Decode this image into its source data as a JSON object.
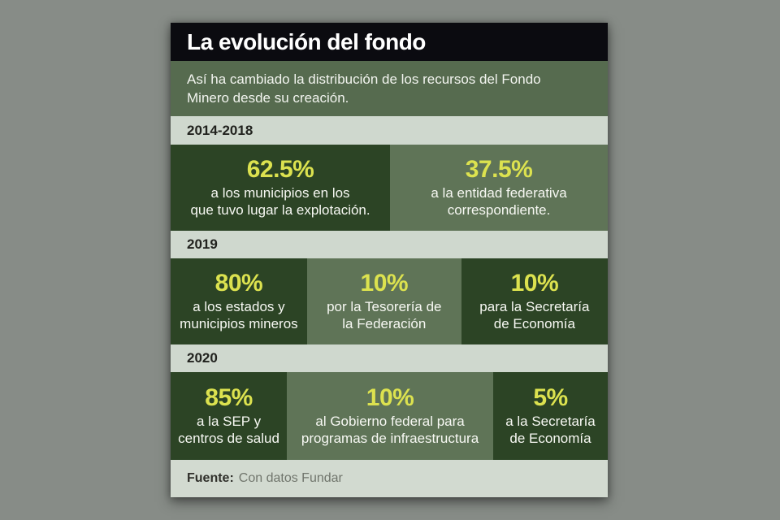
{
  "page": {
    "background": "#878c87"
  },
  "infographic": {
    "title": "La evolución del fondo",
    "subtitle": "Así ha cambiado la distribución de los recursos del Fondo\nMinero desde su creación.",
    "source_label": "Fuente:",
    "source_text": "Con datos Fundar",
    "colors": {
      "header_black": "#0b0b10",
      "subtitle_green": "#566b4f",
      "band_gray_green": "#cfd8ce",
      "dark_green_cell": "#2c4425",
      "sage_green_cell": "#5f7457",
      "accent_yellow": "#dce24f",
      "page_background": "#878c87"
    },
    "sections": [
      {
        "period": "2014-2018",
        "items": [
          {
            "pct": "62.5%",
            "desc": "a los municipios en los\nque tuvo lugar la explotación."
          },
          {
            "pct": "37.5%",
            "desc": "a la entidad federativa\ncorrespondiente."
          }
        ]
      },
      {
        "period": "2019",
        "items": [
          {
            "pct": "80%",
            "desc": "a los estados y\nmunicipios mineros"
          },
          {
            "pct": "10%",
            "desc": "por la Tesorería de\nla Federación"
          },
          {
            "pct": "10%",
            "desc": "para la Secretaría\nde Economía"
          }
        ]
      },
      {
        "period": "2020",
        "items": [
          {
            "pct": "85%",
            "desc": "a la SEP y\ncentros de salud"
          },
          {
            "pct": "10%",
            "desc": "al Gobierno federal para\nprogramas de infraestructura"
          },
          {
            "pct": "5%",
            "desc": "a la Secretaría\nde Economía"
          }
        ]
      }
    ]
  },
  "chart_data": {
    "type": "table",
    "title": "La evolución del fondo",
    "subtitle": "Así ha cambiado la distribución de los recursos del Fondo Minero desde su creación.",
    "unit": "%",
    "source": "Con datos Fundar",
    "rows": [
      {
        "period": "2014-2018",
        "allocations": [
          {
            "value": 62.5,
            "recipient": "a los municipios en los que tuvo lugar la explotación."
          },
          {
            "value": 37.5,
            "recipient": "a la entidad federativa correspondiente."
          }
        ]
      },
      {
        "period": "2019",
        "allocations": [
          {
            "value": 80,
            "recipient": "a los estados y municipios mineros"
          },
          {
            "value": 10,
            "recipient": "por la Tesorería de la Federación"
          },
          {
            "value": 10,
            "recipient": "para la Secretaría de Economía"
          }
        ]
      },
      {
        "period": "2020",
        "allocations": [
          {
            "value": 85,
            "recipient": "a la SEP y centros de salud"
          },
          {
            "value": 10,
            "recipient": "al Gobierno federal para programas de infraestructura"
          },
          {
            "value": 5,
            "recipient": "a la Secretaría de Economía"
          }
        ]
      }
    ]
  }
}
